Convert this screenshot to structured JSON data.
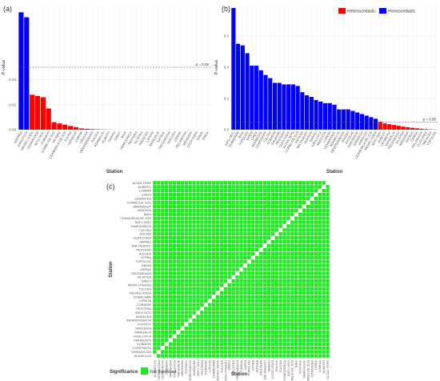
{
  "colors": {
    "heteroscedastic": "#ff0000",
    "homoscedastic": "#0000ff",
    "not_significant": "#22e622",
    "grid": "#ebebeb",
    "threshold_line": "#555555",
    "text": "#333333",
    "panel_bg": "#ffffff"
  },
  "chart_data": [
    {
      "panel_label": "(a)",
      "type": "bar",
      "xlabel": "Station",
      "ylabel": "P-value",
      "ylim": [
        0,
        0.1
      ],
      "yticks": [
        0.0,
        0.02,
        0.04
      ],
      "ytick_labels": [
        "0.00",
        "0.02",
        "0.04"
      ],
      "threshold": 0.05,
      "threshold_label": "p = 0.05",
      "grid": true,
      "categories": [
        "ADDREA",
        "JURILOVCA",
        "NEGRU VODA",
        "CERNAVODA",
        "MITU NOU",
        "COBADIN",
        "CORBU DE SUS",
        "PETERA",
        "CEAMURLIA DE JOS",
        "SULINA",
        "HARSOVA",
        "LUMINA",
        "CRUCEA",
        "INDEPENDENTA",
        "TULCEA",
        "ADAMCLISI",
        "ALBESTI",
        "SARAIU",
        "GRECI",
        "BAIA",
        "HAMCEARCA",
        "PESTERA",
        "SILISTEA",
        "AMZACEA",
        "LIPNITA",
        "MANGALIA",
        "SACELE",
        "PECENEAGA",
        "ISACCEA",
        "CERNA",
        "PECINEAGA",
        "MEDGIDIA",
        "CUZA VODA",
        "DAENI",
        "CHEIA"
      ],
      "values": [
        0.094,
        0.09,
        0.028,
        0.027,
        0.026,
        0.017,
        0.006,
        0.005,
        0.004,
        0.003,
        0.002,
        0.001,
        0.0007,
        0.0005,
        0.0003,
        0.0002,
        0.0001,
        0,
        0,
        0,
        0,
        0,
        0,
        0,
        0,
        0,
        0,
        0,
        0,
        0,
        0,
        0,
        0,
        0,
        0
      ],
      "series": [
        {
          "name": "Homoscedastic",
          "indices": [
            0,
            1
          ]
        },
        {
          "name": "Heteroscedastic",
          "indices": [
            2,
            3,
            4,
            5,
            6,
            7,
            8,
            9,
            10,
            11,
            12,
            13,
            14,
            15,
            16
          ]
        }
      ]
    },
    {
      "panel_label": "(b)",
      "type": "bar",
      "xlabel": "Station",
      "ylabel": "P-value",
      "ylim": [
        0,
        0.8
      ],
      "yticks": [
        0.0,
        0.2,
        0.4,
        0.6
      ],
      "ytick_labels": [
        "0.0",
        "0.2",
        "0.4",
        "0.6"
      ],
      "threshold": 0.05,
      "threshold_label": "p = 0.05",
      "grid": true,
      "legend": {
        "position": "top-right",
        "entries": [
          "Heteroscedastic",
          "Homoscedastic"
        ]
      },
      "categories": [
        "SATU NOU",
        "DOBROMIR",
        "BAIA",
        "TOPOLOG",
        "DAENI",
        "CHEIA",
        "MAHMUDIA",
        "CONSTANTA",
        "TULCEA",
        "COBADIN",
        "GALBIORI",
        "PESTERA",
        "CUZA VODA",
        "ALTAN TEPE",
        "CORBU DE SUS",
        "PETERA",
        "BALTAGESTI",
        "NUNTASI",
        "SARAIU",
        "JURILOVCA",
        "MEDGIDIA",
        "LUMINA",
        "CERNAVODA",
        "ADAMCLISI",
        "INDEPENDENTA",
        "AGIGEA",
        "NICOLAE",
        "SARINASUF",
        "SABANGIA",
        "HARSOVA",
        "CEAMURLIA DE JOS",
        "NEGRU VODA",
        "MITU NOU",
        "ALBESTI",
        "CASIMCEA",
        "MANGALIA",
        "PECENEAGA",
        "SILISTEA",
        "MEDGIDIA",
        "SACELE",
        "CERNA",
        "PECINEAGA",
        "CLOCASEA",
        "AMZACEA",
        "TOPOLOG"
      ],
      "values": [
        0.78,
        0.55,
        0.54,
        0.49,
        0.41,
        0.41,
        0.38,
        0.35,
        0.33,
        0.3,
        0.3,
        0.29,
        0.29,
        0.29,
        0.28,
        0.24,
        0.22,
        0.21,
        0.19,
        0.18,
        0.17,
        0.17,
        0.16,
        0.13,
        0.13,
        0.13,
        0.12,
        0.11,
        0.1,
        0.09,
        0.08,
        0.07,
        0.05,
        0.04,
        0.035,
        0.03,
        0.025,
        0.02,
        0.016,
        0.012,
        0.009,
        0.006,
        0.004,
        0.002,
        0.001
      ],
      "series": [
        {
          "name": "Homoscedastic",
          "indices": [
            0,
            1,
            2,
            3,
            4,
            5,
            6,
            7,
            8,
            9,
            10,
            11,
            12,
            13,
            14,
            15,
            16,
            17,
            18,
            19,
            20,
            21,
            22,
            23,
            24,
            25,
            26,
            27,
            28,
            29,
            30,
            31
          ]
        },
        {
          "name": "Heteroscedastic",
          "indices": [
            32,
            33,
            34,
            35,
            36,
            37,
            38,
            39,
            40,
            41,
            42,
            43,
            44
          ]
        }
      ]
    },
    {
      "panel_label": "(c)",
      "type": "heatmap",
      "xlabel": "Station",
      "ylabel": "Station",
      "legend": {
        "title": "Significance",
        "entries": [
          "Not Significant"
        ],
        "position": "bottom-left"
      },
      "diagonal": "white",
      "y_categories": [
        "ALTAN TEPE",
        "ALBESTI",
        "LUMINA",
        "CHEIA",
        "CASIMCEA",
        "CORBU DE SUS",
        "SARINASUF",
        "NUNTASI",
        "BAIA",
        "CEAMURLIA DE JOS",
        "SATU NOU",
        "HAMCEARCA",
        "TULCEA",
        "SULINA",
        "CUZA VODA",
        "SARAIU",
        "BALTAGESTI",
        "PESTERA",
        "AGIGEA",
        "ISTRIA",
        "TOPOLOG",
        "DAENI",
        "CERNA",
        "PECENEAGA",
        "SILISTEA",
        "GRECI",
        "MIHAI VITEAZU",
        "TULCEA",
        "NEGRU VODA",
        "DOBROMIR",
        "LIPNITA",
        "COBADIN",
        "PESTERA",
        "MITU NOU",
        "AMZACEA",
        "INDEPENDENTA",
        "OSTROV",
        "MEDGIDIA",
        "MANGALIA",
        "JURILOVCA",
        "MAHMUDIA",
        "COBADIN",
        "CONSTANTA",
        "CERNAVODA",
        "ADAMCLISI"
      ],
      "x_categories": [
        "ADAMCLISI",
        "CERNAVODA",
        "CONSTANTA",
        "COBADIN",
        "MAHMUDIA",
        "JURILOVCA",
        "MANGALIA",
        "MEDGIDIA",
        "OSTROV",
        "INDEPENDENTA",
        "AMZACEA",
        "MITU NOU",
        "PESTERA",
        "COBADIN",
        "LIPNITA",
        "DOBROMIR",
        "NEGRU VODA",
        "TULCEA",
        "MIHAI VITEAZU",
        "GRECI",
        "SILISTEA",
        "PECENEAGA",
        "CERNA",
        "DAENI",
        "TOPOLOG",
        "ISTRIA",
        "AGIGEA",
        "PESTERA",
        "BALTAGESTI",
        "SARAIU",
        "CUZA VODA",
        "SULINA",
        "TULCEA",
        "HAMCEARCA",
        "SATU NOU",
        "CEAMURLIA DE JOS",
        "BAIA",
        "NUNTASI",
        "SARINASUF",
        "CORBU DE SUS",
        "CASIMCEA",
        "CHEIA",
        "LUMINA",
        "ALBESTI",
        "ALTAN TEPE"
      ]
    }
  ]
}
